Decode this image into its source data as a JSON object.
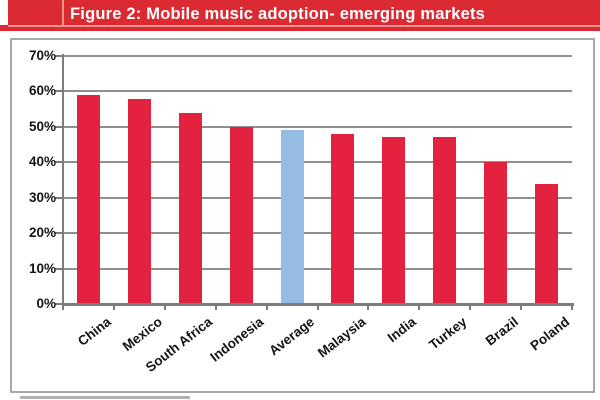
{
  "banner": {
    "bg_color": "#dc2a33",
    "accent_line_color": "#f0938f",
    "text_color": "#ffffff"
  },
  "chart_data": {
    "type": "bar",
    "title": "Figure 2: Mobile music adoption- emerging markets",
    "categories": [
      "China",
      "Mexico",
      "South Africa",
      "Indonesia",
      "Average",
      "Malaysia",
      "India",
      "Turkey",
      "Brazil",
      "Poland"
    ],
    "values": [
      59,
      58,
      54,
      50,
      49,
      48,
      47,
      47,
      40,
      34
    ],
    "unit": "%",
    "xlabel": "",
    "ylabel": "",
    "ylim": [
      0,
      70
    ],
    "ytick_step": 10,
    "ytick_labels": [
      "0%",
      "10%",
      "20%",
      "30%",
      "40%",
      "50%",
      "60%",
      "70%"
    ],
    "grid": true,
    "legend": "none",
    "bar_color": "#e32240",
    "highlight_category": "Average",
    "highlight_color": "#95bce2",
    "gridline_color": "#8f8f8f",
    "axis_color": "#7d7d7d",
    "label_color": "#141414"
  }
}
